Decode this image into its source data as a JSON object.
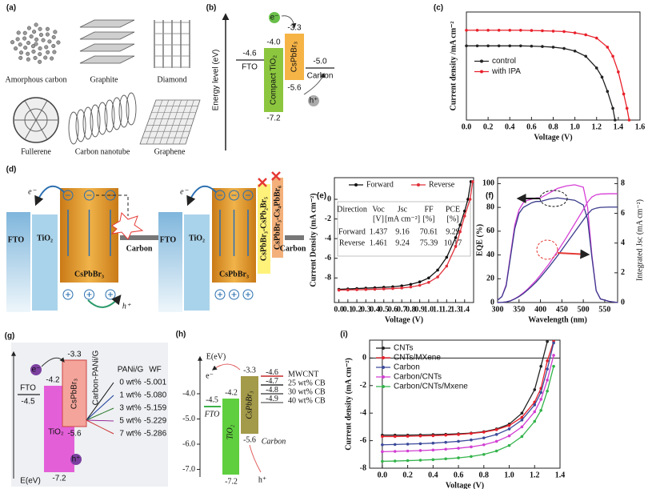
{
  "panels": {
    "a": {
      "label": "(a)",
      "items": [
        "Amorphous carbon",
        "Graphite",
        "Diamond",
        "Fullerene",
        "Carbon nanotube",
        "Graphene"
      ]
    },
    "b": {
      "label": "(b)",
      "y_label": "Energy level (eV)",
      "fto": "FTO",
      "fto_level": "-4.6",
      "tio2": "Compact TiO₂",
      "tio2_cb": "-4.0",
      "tio2_vb": "-7.2",
      "perovskite": "CsPbBr₃",
      "perovskite_cb": "-3.3",
      "perovskite_vb": "-5.6",
      "carbon": "Carbon",
      "carbon_level": "-5.0",
      "electron": "e⁻",
      "hole": "h⁺"
    },
    "d": {
      "label": "(d)",
      "left": {
        "electron": "e⁻",
        "fto": "FTO",
        "tio2": "TiO₂",
        "perovskite": "CsPbBr₃",
        "carbon": "Carbon",
        "hole": "h⁺"
      },
      "right": {
        "electron": "e⁻",
        "fto": "FTO",
        "tio2": "TiO₂",
        "perovskite": "CsPbBr₃",
        "layer1": "CsPbBr₃-CsPb₂Br₅",
        "layer2": "CsPbBr₃-Cs₄PbBr₆",
        "carbon": "Carbon"
      }
    },
    "g": {
      "label": "(g)",
      "fto": "FTO",
      "fto_level": "-4.5",
      "tio2_cb": "-4.2",
      "tio2": "TiO₂",
      "tio2_vb": "-7.2",
      "perovskite": "CsPbBr₃",
      "perovskite_cb": "-3.3",
      "perovskite_vb": "-5.6",
      "carbon": "Carbon-PANi/G",
      "headers": [
        "PANi/G",
        "WF"
      ],
      "rows": [
        [
          "0 wt%",
          "-5.001"
        ],
        [
          "1 wt%",
          "-5.080"
        ],
        [
          "3 wt%",
          "-5.159"
        ],
        [
          "5 wt%",
          "-5.229"
        ],
        [
          "7 wt%",
          "-5.286"
        ]
      ],
      "axis": "E(eV)",
      "electron": "e⁻",
      "hole": "h⁺"
    },
    "h": {
      "label": "(h)",
      "axis": "E(eV)",
      "ticks": [
        "-4.0",
        "-5.0",
        "-6.0",
        "-7.0"
      ],
      "fto": "FTO",
      "fto_level": "-4.5",
      "tio2_cb": "-4.2",
      "tio2": "TiO₂",
      "tio2_vb": "-7.2",
      "perovskite": "CsPbBr₃",
      "perovskite_cb": "-3.3",
      "perovskite_vb": "-5.6",
      "carbon": "Carbon",
      "electrodes": [
        [
          "MWCNT",
          "-4.6"
        ],
        [
          "25 wt% CB",
          "-4.7"
        ],
        [
          "30 wt% CB",
          "-4.8"
        ],
        [
          "40 wt% CB",
          "-4.9"
        ]
      ],
      "electron": "e⁻",
      "hole": "h⁺"
    }
  },
  "chart_data": [
    {
      "type": "line",
      "label": "(c)",
      "x_label": "Voltage (V)",
      "y_label": "Current density /mA cm⁻²",
      "xlim": [
        0,
        1.6
      ],
      "xticks": [
        {
          "value": 0,
          "label": "0.0"
        },
        0.2,
        0.4,
        0.6,
        0.8,
        {
          "value": 1,
          "label": "1.0"
        },
        1.2,
        1.4,
        1.6
      ],
      "ylim": [
        0,
        8.3
      ],
      "legend": "center left",
      "marker": true,
      "series": [
        {
          "name": "control",
          "color": "#222222",
          "x": [
            0,
            0.1,
            0.2,
            0.3,
            0.4,
            0.5,
            0.6,
            0.7,
            0.8,
            0.9,
            1.0,
            1.1,
            1.2,
            1.25,
            1.3,
            1.35,
            1.37
          ],
          "values": [
            5.7,
            5.7,
            5.7,
            5.7,
            5.7,
            5.7,
            5.68,
            5.65,
            5.6,
            5.5,
            5.3,
            4.9,
            4.0,
            3.3,
            2.2,
            0.9,
            0
          ]
        },
        {
          "name": "with IPA",
          "color": "#e8202a",
          "x": [
            0,
            0.1,
            0.2,
            0.3,
            0.4,
            0.5,
            0.6,
            0.7,
            0.8,
            0.9,
            1.0,
            1.1,
            1.2,
            1.3,
            1.35,
            1.4,
            1.45,
            1.48,
            1.5
          ],
          "values": [
            6.9,
            6.9,
            6.9,
            6.9,
            6.9,
            6.9,
            6.88,
            6.86,
            6.83,
            6.8,
            6.7,
            6.55,
            6.3,
            5.6,
            4.9,
            3.7,
            2.0,
            0.9,
            0
          ]
        }
      ]
    },
    {
      "type": "line",
      "label": "(e)",
      "x_label": "Voltage (V)",
      "y_label": "Current Density (mA cm⁻²)",
      "xlim": [
        -0.05,
        1.5
      ],
      "xticks": [
        {
          "value": 0,
          "label": "0.0"
        },
        0.1,
        0.2,
        0.3,
        0.4,
        0.5,
        0.6,
        0.7,
        0.8,
        0.9,
        {
          "value": 1,
          "label": "1.0"
        },
        1.1,
        1.2,
        1.3,
        1.4
      ],
      "ylim": [
        -10.5,
        2.2
      ],
      "yticks": [
        0,
        -2,
        -4,
        -6,
        -8
      ],
      "legend": "top",
      "marker": true,
      "series": [
        {
          "name": "Forward",
          "color": "#111111",
          "x": [
            0,
            0.1,
            0.2,
            0.3,
            0.4,
            0.5,
            0.6,
            0.7,
            0.8,
            0.9,
            1.0,
            1.1,
            1.2,
            1.3,
            1.35,
            1.4,
            1.437,
            1.47
          ],
          "values": [
            -9.16,
            -9.12,
            -9.08,
            -9.04,
            -9.0,
            -8.95,
            -8.9,
            -8.8,
            -8.65,
            -8.4,
            -8.0,
            -7.2,
            -5.9,
            -3.9,
            -2.6,
            -1.2,
            0,
            1.8
          ]
        },
        {
          "name": "Reverse",
          "color": "#e0303a",
          "x": [
            0,
            0.1,
            0.2,
            0.3,
            0.4,
            0.5,
            0.6,
            0.7,
            0.8,
            0.9,
            1.0,
            1.1,
            1.2,
            1.3,
            1.35,
            1.4,
            1.461,
            1.49
          ],
          "values": [
            -9.24,
            -9.22,
            -9.2,
            -9.18,
            -9.15,
            -9.12,
            -9.08,
            -9.02,
            -8.92,
            -8.75,
            -8.45,
            -7.9,
            -6.8,
            -4.8,
            -3.3,
            -1.7,
            0,
            1.8
          ]
        }
      ],
      "table": {
        "header": [
          "Direction",
          "Voc",
          "Jsc",
          "FF",
          "PCE"
        ],
        "units": [
          "[V]",
          "[mA cm⁻²]",
          "[%]",
          "[%]"
        ],
        "rows": [
          [
            "Forward",
            "1.437",
            "9.16",
            "70.61",
            "9.29"
          ],
          [
            "Reverse",
            "1.461",
            "9.24",
            "75.39",
            "10.17"
          ]
        ]
      }
    },
    {
      "type": "line",
      "label": "(f)",
      "x_label": "Wavelength (nm)",
      "y_label": "EQE (%)",
      "y2_label": "Integrated Jsc (mA cm⁻²)",
      "xlim": [
        300,
        580
      ],
      "xticks": [
        300,
        350,
        400,
        450,
        500,
        550
      ],
      "ylim": [
        0,
        105
      ],
      "yticks": [
        0,
        20,
        40,
        60,
        80,
        100
      ],
      "y2lim": [
        0,
        8.4
      ],
      "y2ticks": [
        0,
        2,
        4,
        6,
        8
      ],
      "x": [
        300,
        310,
        320,
        330,
        340,
        350,
        360,
        370,
        380,
        390,
        400,
        420,
        440,
        460,
        480,
        500,
        510,
        520,
        530,
        540,
        560,
        580
      ],
      "series": [
        {
          "color": "#d63fd6",
          "values": [
            2,
            5,
            15,
            40,
            65,
            78,
            84,
            86,
            87,
            88,
            88,
            92,
            96,
            98,
            99,
            97,
            80,
            40,
            10,
            3,
            1,
            0
          ]
        },
        {
          "color": "#3a3a8c",
          "values": [
            2,
            5,
            14,
            38,
            62,
            75,
            80,
            82,
            84,
            85,
            85,
            87,
            88,
            87,
            86,
            82,
            70,
            38,
            10,
            3,
            1,
            0
          ]
        },
        {
          "color": "#d63fd6",
          "axis": "y2",
          "values": [
            0,
            0.01,
            0.04,
            0.12,
            0.26,
            0.43,
            0.65,
            0.9,
            1.2,
            1.5,
            1.85,
            2.6,
            3.45,
            4.35,
            5.3,
            6.25,
            6.75,
            7.1,
            7.25,
            7.3,
            7.32,
            7.32
          ]
        },
        {
          "color": "#3a3a8c",
          "axis": "y2",
          "values": [
            0,
            0.01,
            0.04,
            0.11,
            0.24,
            0.4,
            0.6,
            0.84,
            1.1,
            1.38,
            1.7,
            2.4,
            3.15,
            3.95,
            4.75,
            5.55,
            5.95,
            6.25,
            6.35,
            6.4,
            6.42,
            6.42
          ]
        }
      ]
    },
    {
      "type": "line",
      "label": "(i)",
      "x_label": "Voltage (V)",
      "y_label": "Current density (mA cm⁻²)",
      "xlim": [
        -0.1,
        1.4
      ],
      "xticks": [
        {
          "value": 0,
          "label": "0.0"
        },
        0.2,
        0.4,
        0.6,
        0.8,
        {
          "value": 1,
          "label": "1.0"
        },
        1.2,
        1.4
      ],
      "ylim": [
        -8,
        1.3
      ],
      "yticks": [
        0,
        -2,
        -4,
        -6,
        -8
      ],
      "legend": "upper left",
      "marker": true,
      "zero_lines": true,
      "x": [
        0,
        0.1,
        0.2,
        0.3,
        0.4,
        0.5,
        0.6,
        0.7,
        0.8,
        0.9,
        1.0,
        1.1,
        1.2,
        1.25,
        1.3,
        1.35
      ],
      "series": [
        {
          "name": "CNTs",
          "color": "#222222",
          "values": [
            -5.6,
            -5.6,
            -5.6,
            -5.58,
            -5.56,
            -5.54,
            -5.5,
            -5.45,
            -5.35,
            -5.15,
            -4.8,
            -4.0,
            -2.3,
            -0.6,
            1.2,
            null
          ]
        },
        {
          "name": "CNTs/MXene",
          "color": "#e8202a",
          "values": [
            -5.7,
            -5.7,
            -5.68,
            -5.66,
            -5.64,
            -5.6,
            -5.55,
            -5.48,
            -5.38,
            -5.2,
            -4.9,
            -4.3,
            -3.2,
            -2.2,
            -0.2,
            1.2
          ]
        },
        {
          "name": "Carbon",
          "color": "#3b4a9a",
          "values": [
            -6.3,
            -6.28,
            -6.25,
            -6.22,
            -6.18,
            -6.12,
            -6.05,
            -5.95,
            -5.8,
            -5.55,
            -5.15,
            -4.5,
            -3.4,
            -2.5,
            -0.8,
            1.1
          ]
        },
        {
          "name": "Carbon/CNTs",
          "color": "#d23fd2",
          "values": [
            -6.8,
            -6.78,
            -6.75,
            -6.72,
            -6.68,
            -6.62,
            -6.55,
            -6.45,
            -6.3,
            -6.05,
            -5.65,
            -5.0,
            -3.9,
            -3.0,
            -1.6,
            0.2
          ]
        },
        {
          "name": "Carbon/CNTs/Mxene",
          "color": "#33b34a",
          "values": [
            -7.5,
            -7.48,
            -7.45,
            -7.42,
            -7.38,
            -7.32,
            -7.25,
            -7.15,
            -7.0,
            -6.75,
            -6.35,
            -5.7,
            -4.6,
            -3.8,
            -2.4,
            -0.6
          ]
        }
      ]
    }
  ]
}
